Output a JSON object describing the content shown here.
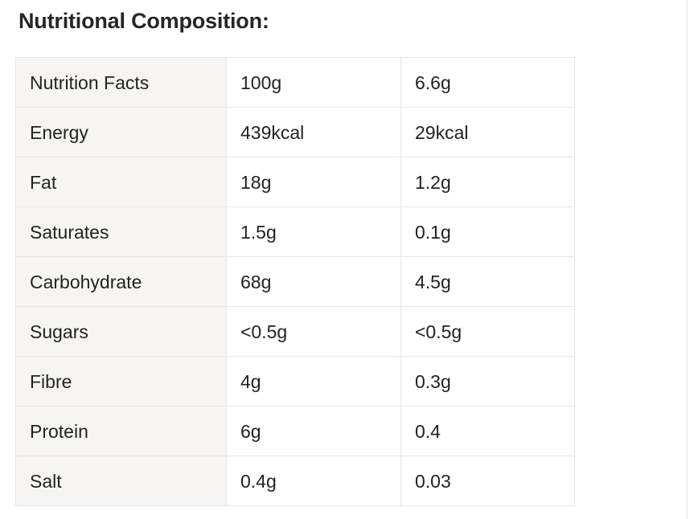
{
  "heading": "Nutritional Composition:",
  "table": {
    "rows": [
      {
        "label": "Nutrition Facts",
        "per_100g": "100g",
        "per_serving": "6.6g"
      },
      {
        "label": "Energy",
        "per_100g": "439kcal",
        "per_serving": "29kcal"
      },
      {
        "label": "Fat",
        "per_100g": "18g",
        "per_serving": "1.2g"
      },
      {
        "label": "Saturates",
        "per_100g": "1.5g",
        "per_serving": "0.1g"
      },
      {
        "label": "Carbohydrate",
        "per_100g": "68g",
        "per_serving": "4.5g"
      },
      {
        "label": "Sugars",
        "per_100g": "<0.5g",
        "per_serving": "<0.5g"
      },
      {
        "label": "Fibre",
        "per_100g": "4g",
        "per_serving": "0.3g"
      },
      {
        "label": "Protein",
        "per_100g": "6g",
        "per_serving": "0.4"
      },
      {
        "label": "Salt",
        "per_100g": "0.4g",
        "per_serving": "0.03"
      }
    ]
  },
  "colors": {
    "label_column_background": "#f6f5f2",
    "cell_border": "#e6e6e6",
    "text": "#222222"
  }
}
